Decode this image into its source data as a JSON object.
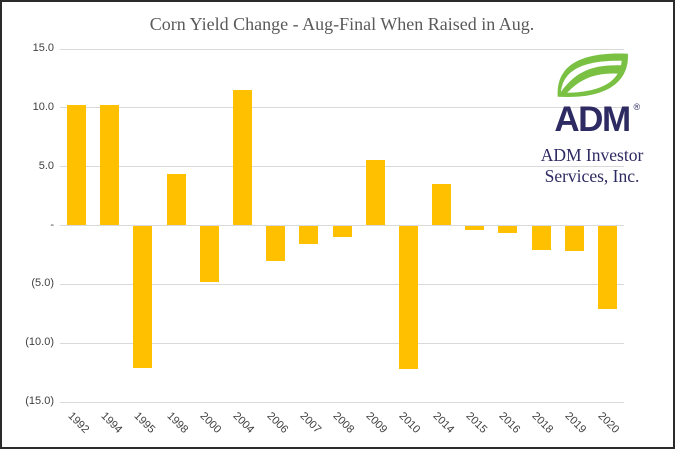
{
  "title": "Corn Yield Change - Aug-Final When Raised in Aug.",
  "logo": {
    "brand": "ADM",
    "registered": "®",
    "caption_line1": "ADM Investor",
    "caption_line2": "Services, Inc.",
    "navy_color": "#2e2a62",
    "leaf_green_color": "#7ac143"
  },
  "chart_data": {
    "type": "bar",
    "title": "Corn Yield Change - Aug-Final When Raised in Aug.",
    "categories": [
      "1992",
      "1994",
      "1995",
      "1998",
      "2000",
      "2004",
      "2006",
      "2007",
      "2008",
      "2009",
      "2010",
      "2014",
      "2015",
      "2016",
      "2018",
      "2019",
      "2020"
    ],
    "values": [
      10.2,
      10.2,
      -12.1,
      4.4,
      -4.8,
      11.5,
      -3.0,
      -1.6,
      -1.0,
      5.6,
      -12.2,
      3.5,
      -0.4,
      -0.6,
      -2.1,
      -2.2,
      -7.1
    ],
    "xlabel": "",
    "ylabel": "",
    "ylim": [
      -15,
      15
    ],
    "ytick_interval": 5,
    "ytick_labels": [
      "15.0",
      "10.0",
      "5.0",
      "-",
      "(5.0)",
      "(10.0)",
      "(15.0)"
    ],
    "grid": true,
    "legend": false,
    "bar_color": "#ffc000",
    "gridline_color": "#d9d9d9",
    "tick_label_color": "#404040",
    "title_color": "#595959"
  }
}
